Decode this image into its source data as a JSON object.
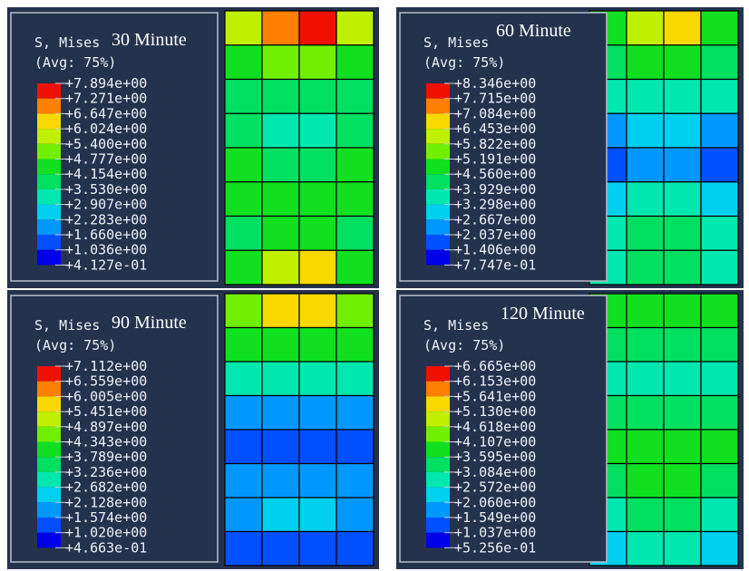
{
  "panels": [
    {
      "title": "S, Mises",
      "avg": "(Avg: 75%)",
      "time": "30 Minute",
      "legend": [
        "+7.894e+00",
        "+7.271e+00",
        "+6.647e+00",
        "+6.024e+00",
        "+5.400e+00",
        "+4.777e+00",
        "+4.154e+00",
        "+3.530e+00",
        "+2.907e+00",
        "+2.283e+00",
        "+1.660e+00",
        "+1.036e+00",
        "+4.127e-01"
      ]
    },
    {
      "title": "S, Mises",
      "avg": "(Avg: 75%)",
      "time": "60 Minute",
      "legend": [
        "+8.346e+00",
        "+7.715e+00",
        "+7.084e+00",
        "+6.453e+00",
        "+5.822e+00",
        "+5.191e+00",
        "+4.560e+00",
        "+3.929e+00",
        "+3.298e+00",
        "+2.667e+00",
        "+2.037e+00",
        "+1.406e+00",
        "+7.747e-01"
      ]
    },
    {
      "title": "S, Mises",
      "avg": "(Avg: 75%)",
      "time": "90 Minute",
      "legend": [
        "+7.112e+00",
        "+6.559e+00",
        "+6.005e+00",
        "+5.451e+00",
        "+4.897e+00",
        "+4.343e+00",
        "+3.789e+00",
        "+3.236e+00",
        "+2.682e+00",
        "+2.128e+00",
        "+1.574e+00",
        "+1.020e+00",
        "+4.663e-01"
      ]
    },
    {
      "title": "S, Mises",
      "avg": "(Avg: 75%)",
      "time": "120 Minute",
      "legend": [
        "+6.665e+00",
        "+6.153e+00",
        "+5.641e+00",
        "+5.130e+00",
        "+4.618e+00",
        "+4.107e+00",
        "+3.595e+00",
        "+3.084e+00",
        "+2.572e+00",
        "+2.060e+00",
        "+1.549e+00",
        "+1.037e+00",
        "+5.256e-01"
      ]
    }
  ]
}
